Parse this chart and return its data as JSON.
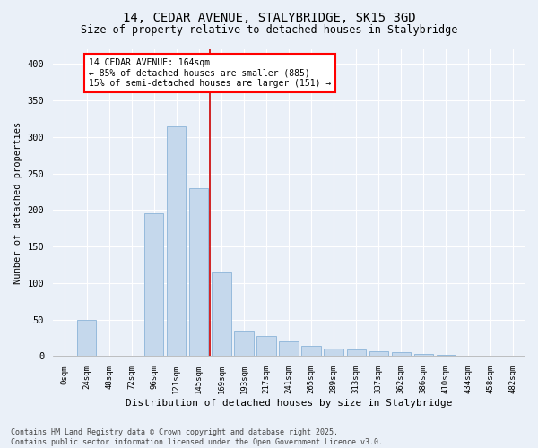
{
  "title1": "14, CEDAR AVENUE, STALYBRIDGE, SK15 3GD",
  "title2": "Size of property relative to detached houses in Stalybridge",
  "xlabel": "Distribution of detached houses by size in Stalybridge",
  "ylabel": "Number of detached properties",
  "bar_labels": [
    "0sqm",
    "24sqm",
    "48sqm",
    "72sqm",
    "96sqm",
    "121sqm",
    "145sqm",
    "169sqm",
    "193sqm",
    "217sqm",
    "241sqm",
    "265sqm",
    "289sqm",
    "313sqm",
    "337sqm",
    "362sqm",
    "386sqm",
    "410sqm",
    "434sqm",
    "458sqm",
    "482sqm"
  ],
  "bar_values": [
    1,
    50,
    0,
    0,
    195,
    315,
    230,
    115,
    35,
    28,
    20,
    14,
    11,
    9,
    7,
    5,
    3,
    2,
    1,
    0,
    1
  ],
  "bar_color": "#c5d8ec",
  "bar_edge_color": "#8bb4d8",
  "vline_color": "#cc0000",
  "annotation_title": "14 CEDAR AVENUE: 164sqm",
  "annotation_line1": "← 85% of detached houses are smaller (885)",
  "annotation_line2": "15% of semi-detached houses are larger (151) →",
  "ylim": [
    0,
    420
  ],
  "yticks": [
    0,
    50,
    100,
    150,
    200,
    250,
    300,
    350,
    400
  ],
  "background_color": "#eaf0f8",
  "grid_color": "#ffffff",
  "footer1": "Contains HM Land Registry data © Crown copyright and database right 2025.",
  "footer2": "Contains public sector information licensed under the Open Government Licence v3.0."
}
